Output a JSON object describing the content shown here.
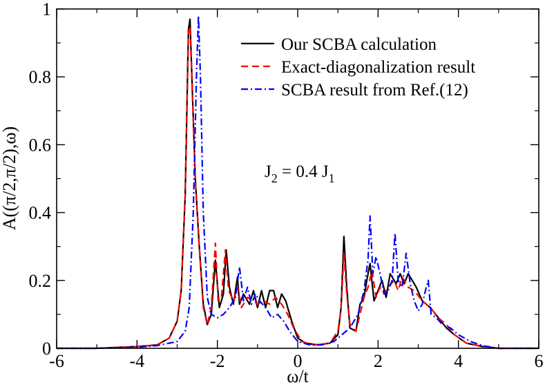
{
  "chart_data": {
    "type": "line",
    "title": "",
    "xlabel": "ω/t",
    "ylabel": "A((π/2,π/2),ω)",
    "xlim": [
      -6,
      6
    ],
    "ylim": [
      0,
      1
    ],
    "x_ticks": [
      -6,
      -4,
      -2,
      0,
      2,
      4,
      6
    ],
    "x_tick_labels": [
      "-6",
      "-4",
      "-2",
      "0",
      "2",
      "4",
      "6"
    ],
    "y_ticks": [
      0,
      0.2,
      0.4,
      0.6,
      0.8,
      1
    ],
    "y_tick_labels": [
      "0",
      "0.2",
      "0.4",
      "0.6",
      "0.8",
      "1"
    ],
    "grid": false,
    "legend_position": "top-right",
    "annotation": {
      "main": "J",
      "sub1": "2",
      "mid": " = 0.4 J",
      "sub2": "1"
    },
    "series": [
      {
        "name": "Our SCBA calculation",
        "color": "#000000",
        "style": "solid",
        "points": [
          [
            -6.0,
            0.0
          ],
          [
            -5.0,
            0.0
          ],
          [
            -4.0,
            0.005
          ],
          [
            -3.5,
            0.01
          ],
          [
            -3.2,
            0.03
          ],
          [
            -3.0,
            0.08
          ],
          [
            -2.9,
            0.17
          ],
          [
            -2.8,
            0.45
          ],
          [
            -2.72,
            0.94
          ],
          [
            -2.68,
            0.97
          ],
          [
            -2.62,
            0.75
          ],
          [
            -2.55,
            0.5
          ],
          [
            -2.45,
            0.3
          ],
          [
            -2.35,
            0.13
          ],
          [
            -2.25,
            0.07
          ],
          [
            -2.15,
            0.1
          ],
          [
            -2.05,
            0.26
          ],
          [
            -1.95,
            0.12
          ],
          [
            -1.85,
            0.16
          ],
          [
            -1.78,
            0.29
          ],
          [
            -1.7,
            0.18
          ],
          [
            -1.6,
            0.13
          ],
          [
            -1.5,
            0.21
          ],
          [
            -1.45,
            0.13
          ],
          [
            -1.35,
            0.16
          ],
          [
            -1.2,
            0.13
          ],
          [
            -1.1,
            0.17
          ],
          [
            -1.0,
            0.12
          ],
          [
            -0.9,
            0.17
          ],
          [
            -0.8,
            0.12
          ],
          [
            -0.7,
            0.17
          ],
          [
            -0.6,
            0.17
          ],
          [
            -0.5,
            0.12
          ],
          [
            -0.4,
            0.16
          ],
          [
            -0.3,
            0.14
          ],
          [
            -0.15,
            0.08
          ],
          [
            0.0,
            0.03
          ],
          [
            0.2,
            0.015
          ],
          [
            0.5,
            0.01
          ],
          [
            0.8,
            0.015
          ],
          [
            1.0,
            0.04
          ],
          [
            1.08,
            0.12
          ],
          [
            1.15,
            0.33
          ],
          [
            1.22,
            0.18
          ],
          [
            1.3,
            0.06
          ],
          [
            1.45,
            0.05
          ],
          [
            1.55,
            0.13
          ],
          [
            1.65,
            0.15
          ],
          [
            1.72,
            0.2
          ],
          [
            1.8,
            0.25
          ],
          [
            1.9,
            0.14
          ],
          [
            2.0,
            0.17
          ],
          [
            2.1,
            0.2
          ],
          [
            2.2,
            0.15
          ],
          [
            2.3,
            0.22
          ],
          [
            2.45,
            0.19
          ],
          [
            2.55,
            0.22
          ],
          [
            2.65,
            0.19
          ],
          [
            2.75,
            0.22
          ],
          [
            2.85,
            0.2
          ],
          [
            2.95,
            0.18
          ],
          [
            3.1,
            0.14
          ],
          [
            3.3,
            0.12
          ],
          [
            3.5,
            0.09
          ],
          [
            3.7,
            0.06
          ],
          [
            3.9,
            0.04
          ],
          [
            4.2,
            0.015
          ],
          [
            4.6,
            0.005
          ],
          [
            5.0,
            0.0
          ],
          [
            6.0,
            0.0
          ]
        ]
      },
      {
        "name": "Exact-diagonalization result",
        "color": "#ff0000",
        "style": "dashed",
        "points": [
          [
            -6.0,
            0.0
          ],
          [
            -5.0,
            0.0
          ],
          [
            -4.0,
            0.005
          ],
          [
            -3.5,
            0.01
          ],
          [
            -3.2,
            0.03
          ],
          [
            -3.0,
            0.08
          ],
          [
            -2.9,
            0.17
          ],
          [
            -2.8,
            0.45
          ],
          [
            -2.72,
            0.93
          ],
          [
            -2.68,
            0.95
          ],
          [
            -2.62,
            0.75
          ],
          [
            -2.55,
            0.5
          ],
          [
            -2.45,
            0.3
          ],
          [
            -2.35,
            0.12
          ],
          [
            -2.25,
            0.07
          ],
          [
            -2.15,
            0.12
          ],
          [
            -2.05,
            0.31
          ],
          [
            -1.98,
            0.14
          ],
          [
            -1.9,
            0.15
          ],
          [
            -1.8,
            0.29
          ],
          [
            -1.72,
            0.17
          ],
          [
            -1.6,
            0.14
          ],
          [
            -1.5,
            0.18
          ],
          [
            -1.4,
            0.12
          ],
          [
            -1.25,
            0.15
          ],
          [
            -1.1,
            0.14
          ],
          [
            -1.0,
            0.13
          ],
          [
            -0.85,
            0.14
          ],
          [
            -0.7,
            0.13
          ],
          [
            -0.55,
            0.15
          ],
          [
            -0.4,
            0.13
          ],
          [
            -0.25,
            0.1
          ],
          [
            -0.1,
            0.06
          ],
          [
            0.1,
            0.02
          ],
          [
            0.4,
            0.01
          ],
          [
            0.8,
            0.015
          ],
          [
            1.0,
            0.05
          ],
          [
            1.08,
            0.12
          ],
          [
            1.15,
            0.28
          ],
          [
            1.22,
            0.16
          ],
          [
            1.3,
            0.07
          ],
          [
            1.45,
            0.05
          ],
          [
            1.55,
            0.1
          ],
          [
            1.65,
            0.15
          ],
          [
            1.75,
            0.18
          ],
          [
            1.85,
            0.23
          ],
          [
            1.95,
            0.15
          ],
          [
            2.05,
            0.18
          ],
          [
            2.15,
            0.16
          ],
          [
            2.25,
            0.18
          ],
          [
            2.4,
            0.2
          ],
          [
            2.5,
            0.17
          ],
          [
            2.6,
            0.21
          ],
          [
            2.75,
            0.18
          ],
          [
            2.9,
            0.17
          ],
          [
            3.1,
            0.14
          ],
          [
            3.3,
            0.12
          ],
          [
            3.5,
            0.09
          ],
          [
            3.7,
            0.07
          ],
          [
            3.9,
            0.04
          ],
          [
            4.2,
            0.015
          ],
          [
            4.6,
            0.005
          ],
          [
            5.0,
            0.0
          ],
          [
            6.0,
            0.0
          ]
        ]
      },
      {
        "name": "SCBA result from Ref.(12)",
        "color": "#0000ff",
        "style": "dashdot",
        "points": [
          [
            -6.0,
            0.0
          ],
          [
            -5.0,
            0.0
          ],
          [
            -4.0,
            0.003
          ],
          [
            -3.5,
            0.008
          ],
          [
            -3.0,
            0.02
          ],
          [
            -2.8,
            0.05
          ],
          [
            -2.7,
            0.12
          ],
          [
            -2.6,
            0.4
          ],
          [
            -2.52,
            0.8
          ],
          [
            -2.47,
            0.98
          ],
          [
            -2.42,
            0.8
          ],
          [
            -2.35,
            0.4
          ],
          [
            -2.25,
            0.15
          ],
          [
            -2.15,
            0.1
          ],
          [
            -2.0,
            0.09
          ],
          [
            -1.85,
            0.1
          ],
          [
            -1.7,
            0.12
          ],
          [
            -1.55,
            0.15
          ],
          [
            -1.45,
            0.24
          ],
          [
            -1.35,
            0.14
          ],
          [
            -1.25,
            0.18
          ],
          [
            -1.15,
            0.13
          ],
          [
            -1.05,
            0.16
          ],
          [
            -0.95,
            0.14
          ],
          [
            -0.8,
            0.12
          ],
          [
            -0.65,
            0.09
          ],
          [
            -0.5,
            0.1
          ],
          [
            -0.35,
            0.08
          ],
          [
            -0.2,
            0.05
          ],
          [
            0.0,
            0.02
          ],
          [
            0.3,
            0.01
          ],
          [
            0.6,
            0.01
          ],
          [
            0.9,
            0.02
          ],
          [
            1.1,
            0.04
          ],
          [
            1.3,
            0.06
          ],
          [
            1.5,
            0.1
          ],
          [
            1.65,
            0.17
          ],
          [
            1.75,
            0.26
          ],
          [
            1.8,
            0.39
          ],
          [
            1.87,
            0.22
          ],
          [
            1.95,
            0.27
          ],
          [
            2.05,
            0.22
          ],
          [
            2.15,
            0.16
          ],
          [
            2.25,
            0.17
          ],
          [
            2.35,
            0.2
          ],
          [
            2.42,
            0.34
          ],
          [
            2.5,
            0.2
          ],
          [
            2.6,
            0.18
          ],
          [
            2.7,
            0.28
          ],
          [
            2.8,
            0.19
          ],
          [
            2.9,
            0.14
          ],
          [
            3.0,
            0.11
          ],
          [
            3.1,
            0.13
          ],
          [
            3.2,
            0.18
          ],
          [
            3.25,
            0.2
          ],
          [
            3.32,
            0.1
          ],
          [
            3.45,
            0.09
          ],
          [
            3.6,
            0.07
          ],
          [
            3.8,
            0.06
          ],
          [
            4.0,
            0.04
          ],
          [
            4.3,
            0.02
          ],
          [
            4.6,
            0.008
          ],
          [
            5.0,
            0.0
          ],
          [
            6.0,
            0.0
          ]
        ]
      }
    ]
  }
}
